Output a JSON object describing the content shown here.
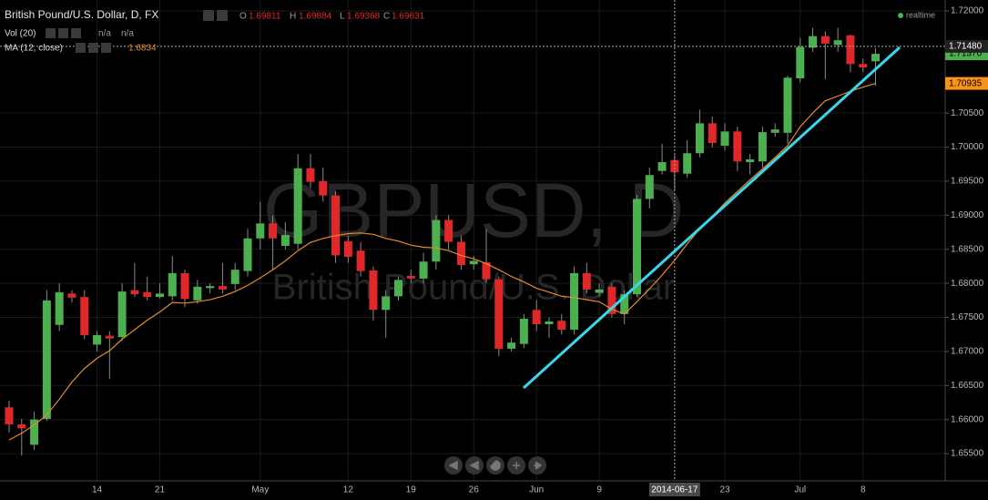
{
  "chart_data": {
    "type": "candlestick",
    "title": "British Pound/U.S. Dollar, D, FX",
    "ohlc_letters": [
      "O",
      "H",
      "L",
      "C"
    ],
    "vol_label": "Vol (20)",
    "vol_values": [
      "n/a",
      "n/a"
    ],
    "realtime_label": "realtime",
    "watermark": "GBPUSD, D",
    "watermark_subtitle": "British Pound/U.S. Dollar",
    "categories": [
      null,
      null,
      null,
      null,
      null,
      null,
      null,
      "14",
      null,
      null,
      null,
      null,
      "21",
      null,
      null,
      null,
      null,
      null,
      null,
      null,
      "May",
      null,
      null,
      null,
      null,
      null,
      null,
      "12",
      null,
      null,
      null,
      null,
      "19",
      null,
      null,
      null,
      null,
      "26",
      null,
      null,
      null,
      null,
      "Jun",
      null,
      null,
      null,
      null,
      "9",
      null,
      null,
      null,
      null,
      null,
      "2014-06-17",
      null,
      null,
      null,
      "23",
      null,
      null,
      null,
      null,
      null,
      "Jul",
      null,
      null,
      null,
      null,
      "8",
      null
    ],
    "series": [
      {
        "up_color": "#4caf50",
        "down_color": "#e0282b",
        "wick_color": "#8a8a8a",
        "open": [
          1.6618,
          1.6593,
          1.6563,
          1.6601,
          1.6739,
          1.6785,
          1.678,
          1.671,
          1.6723,
          1.6721,
          1.679,
          1.6787,
          1.678,
          1.6781,
          1.6815,
          1.6775,
          1.6793,
          1.6796,
          1.6799,
          1.6818,
          1.6866,
          1.6888,
          1.6855,
          1.6858,
          1.6969,
          1.695,
          1.6929,
          1.6862,
          1.6848,
          1.6819,
          1.6761,
          1.6781,
          1.6811,
          1.6807,
          1.6832,
          1.6893,
          1.6861,
          1.6828,
          1.6831,
          1.6806,
          1.6704,
          1.6711,
          1.6761,
          1.674,
          1.6745,
          1.6732,
          1.6815,
          1.6786,
          1.6795,
          1.6755,
          1.6784,
          1.6924,
          1.6965,
          1.69811,
          1.6961,
          1.6991,
          1.7035,
          1.7002,
          1.7023,
          1.6978,
          1.6979,
          1.7021,
          1.7021,
          1.7101,
          1.7146,
          1.7163,
          1.715,
          1.7164,
          1.7122,
          1.7126
        ],
        "high": [
          1.6628,
          1.6601,
          1.6612,
          1.679,
          1.68,
          1.679,
          1.679,
          1.673,
          1.673,
          1.68,
          1.683,
          1.681,
          1.68,
          1.684,
          1.682,
          1.6805,
          1.68,
          1.683,
          1.683,
          1.688,
          1.692,
          1.69,
          1.689,
          1.699,
          1.699,
          1.697,
          1.6935,
          1.687,
          1.686,
          1.6825,
          1.679,
          1.681,
          1.682,
          1.6845,
          1.69,
          1.69,
          1.687,
          1.684,
          1.688,
          1.681,
          1.672,
          1.6755,
          1.6775,
          1.675,
          1.6755,
          1.6825,
          1.683,
          1.68,
          1.68,
          1.679,
          1.693,
          1.697,
          1.7005,
          1.69884,
          1.701,
          1.7055,
          1.7045,
          1.7035,
          1.703,
          1.699,
          1.703,
          1.7035,
          1.7105,
          1.716,
          1.7175,
          1.717,
          1.7175,
          1.7165,
          1.713,
          1.7145
        ],
        "low": [
          1.6581,
          1.6547,
          1.6555,
          1.6598,
          1.673,
          1.6772,
          1.6718,
          1.67,
          1.666,
          1.6715,
          1.678,
          1.6775,
          1.6778,
          1.6775,
          1.6765,
          1.677,
          1.6785,
          1.6785,
          1.679,
          1.681,
          1.685,
          1.682,
          1.685,
          1.685,
          1.694,
          1.692,
          1.683,
          1.683,
          1.681,
          1.6745,
          1.672,
          1.6775,
          1.68,
          1.68,
          1.682,
          1.685,
          1.682,
          1.682,
          1.68,
          1.6693,
          1.67,
          1.6705,
          1.673,
          1.672,
          1.6725,
          1.6725,
          1.6785,
          1.678,
          1.675,
          1.674,
          1.678,
          1.691,
          1.696,
          1.69368,
          1.6955,
          1.6985,
          1.7,
          1.6995,
          1.6965,
          1.696,
          1.697,
          1.7015,
          1.7005,
          1.7095,
          1.714,
          1.71,
          1.714,
          1.711,
          1.711,
          1.709
        ],
        "close": [
          1.6593,
          1.6587,
          1.66,
          1.6775,
          1.6787,
          1.6779,
          1.6724,
          1.6724,
          1.6719,
          1.6788,
          1.6784,
          1.678,
          1.6785,
          1.6815,
          1.6777,
          1.6795,
          1.6796,
          1.6791,
          1.682,
          1.6866,
          1.6888,
          1.6866,
          1.6871,
          1.6969,
          1.6949,
          1.6929,
          1.6841,
          1.6839,
          1.6818,
          1.6761,
          1.6781,
          1.6805,
          1.6807,
          1.6832,
          1.6893,
          1.6861,
          1.6827,
          1.6833,
          1.6806,
          1.6704,
          1.6713,
          1.6748,
          1.674,
          1.6744,
          1.6732,
          1.6815,
          1.6791,
          1.6791,
          1.6755,
          1.6784,
          1.6924,
          1.6959,
          1.6978,
          1.69631,
          1.6991,
          1.7035,
          1.7006,
          1.7023,
          1.6979,
          1.6982,
          1.7022,
          1.7026,
          1.7102,
          1.7147,
          1.7163,
          1.7152,
          1.7157,
          1.7122,
          1.7117,
          1.7137
        ]
      },
      {
        "name": "MA (12, close)",
        "color": "#e8892b",
        "values": [
          1.657,
          1.658,
          1.6592,
          1.6607,
          1.663,
          1.6655,
          1.6675,
          1.669,
          1.6701,
          1.6718,
          1.6732,
          1.6746,
          1.6758,
          1.6772,
          1.6771,
          1.6773,
          1.6776,
          1.6781,
          1.6788,
          1.6797,
          1.6808,
          1.682,
          1.6833,
          1.6848,
          1.686,
          1.6866,
          1.687,
          1.6873,
          1.6874,
          1.6872,
          1.6866,
          1.6862,
          1.6856,
          1.6853,
          1.6852,
          1.6848,
          1.6841,
          1.6836,
          1.6829,
          1.682,
          1.681,
          1.6802,
          1.6793,
          1.6787,
          1.6781,
          1.6779,
          1.6776,
          1.6773,
          1.6762,
          1.6755,
          1.6773,
          1.6792,
          1.6812,
          1.6834,
          1.6858,
          1.688,
          1.6898,
          1.6918,
          1.6935,
          1.6952,
          1.6968,
          1.6985,
          1.7002,
          1.703,
          1.705,
          1.7068,
          1.7075,
          1.7082,
          1.7088,
          1.70935
        ]
      }
    ],
    "ylim": [
      1.651,
      1.7216
    ],
    "yticks": [
      {
        "value": 1.655,
        "label": "1.65500"
      },
      {
        "value": 1.66,
        "label": "1.66000"
      },
      {
        "value": 1.665,
        "label": "1.66500"
      },
      {
        "value": 1.67,
        "label": "1.67000"
      },
      {
        "value": 1.675,
        "label": "1.67500"
      },
      {
        "value": 1.68,
        "label": "1.68000"
      },
      {
        "value": 1.685,
        "label": "1.68500"
      },
      {
        "value": 1.69,
        "label": "1.69000"
      },
      {
        "value": 1.695,
        "label": "1.69500"
      },
      {
        "value": 1.7,
        "label": "1.70000"
      },
      {
        "value": 1.705,
        "label": "1.70500"
      },
      {
        "value": 1.72,
        "label": "1.72000"
      }
    ],
    "crosshair_price": {
      "value": 1.7148,
      "label": "1.71480"
    },
    "last_price": {
      "value": 1.7137,
      "label": "1.71370"
    },
    "grid": true
  }
}
